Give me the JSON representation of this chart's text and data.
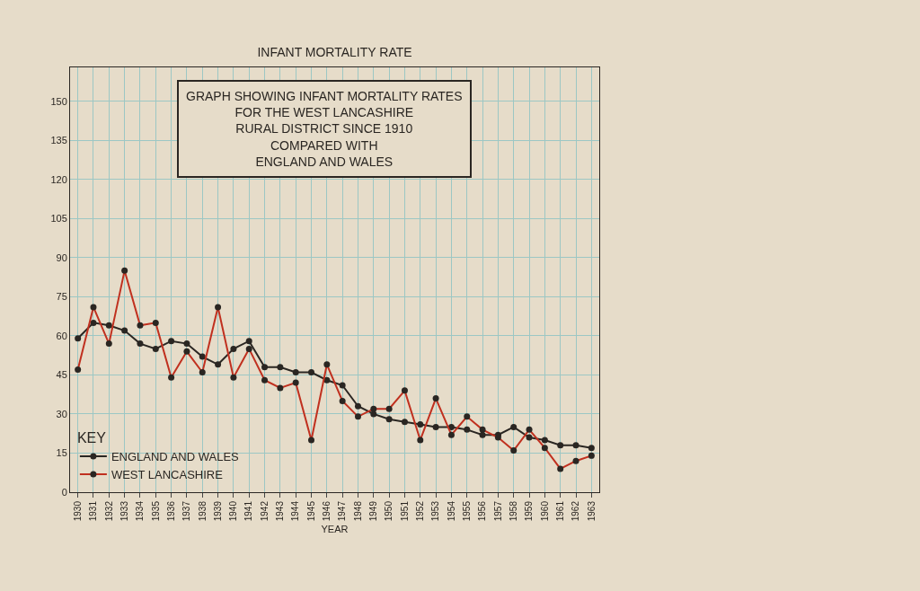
{
  "chart_data": {
    "type": "line",
    "title": "INFANT MORTALITY RATE",
    "subtitle": "GRAPH SHOWING INFANT MORTALITY RATES\nFOR THE WEST LANCASHIRE\nRURAL DISTRICT SINCE 1910\nCOMPARED WITH\nENGLAND AND WALES",
    "xlabel": "YEAR",
    "legend_title": "KEY",
    "categories": [
      "1930",
      "1931",
      "1932",
      "1933",
      "1934",
      "1935",
      "1936",
      "1937",
      "1938",
      "1939",
      "1940",
      "1941",
      "1942",
      "1943",
      "1944",
      "1945",
      "1946",
      "1947",
      "1948",
      "1949",
      "1950",
      "1951",
      "1952",
      "1953",
      "1954",
      "1955",
      "1956",
      "1957",
      "1958",
      "1959",
      "1960",
      "1961",
      "1962",
      "1963"
    ],
    "series": [
      {
        "name": "ENGLAND AND WALES",
        "color": "#2a2622",
        "values": [
          59,
          65,
          64,
          62,
          57,
          55,
          58,
          57,
          52,
          49,
          55,
          58,
          48,
          48,
          46,
          46,
          43,
          41,
          33,
          30,
          28,
          27,
          26,
          25,
          25,
          24,
          22,
          22,
          25,
          21,
          20,
          18,
          18,
          17
        ]
      },
      {
        "name": "WEST LANCASHIRE",
        "color": "#c0301f",
        "values": [
          47,
          71,
          57,
          85,
          64,
          65,
          44,
          54,
          46,
          71,
          44,
          55,
          43,
          40,
          42,
          20,
          49,
          35,
          29,
          32,
          32,
          39,
          20,
          36,
          22,
          29,
          24,
          21,
          16,
          24,
          17,
          9,
          12,
          14
        ]
      }
    ],
    "ylim": [
      0,
      163
    ],
    "yticks": [
      0,
      15,
      30,
      45,
      60,
      75,
      90,
      105,
      120,
      135,
      150
    ],
    "grid": true,
    "legend": "bottom left",
    "marker": "circle",
    "line_style": "solid"
  }
}
